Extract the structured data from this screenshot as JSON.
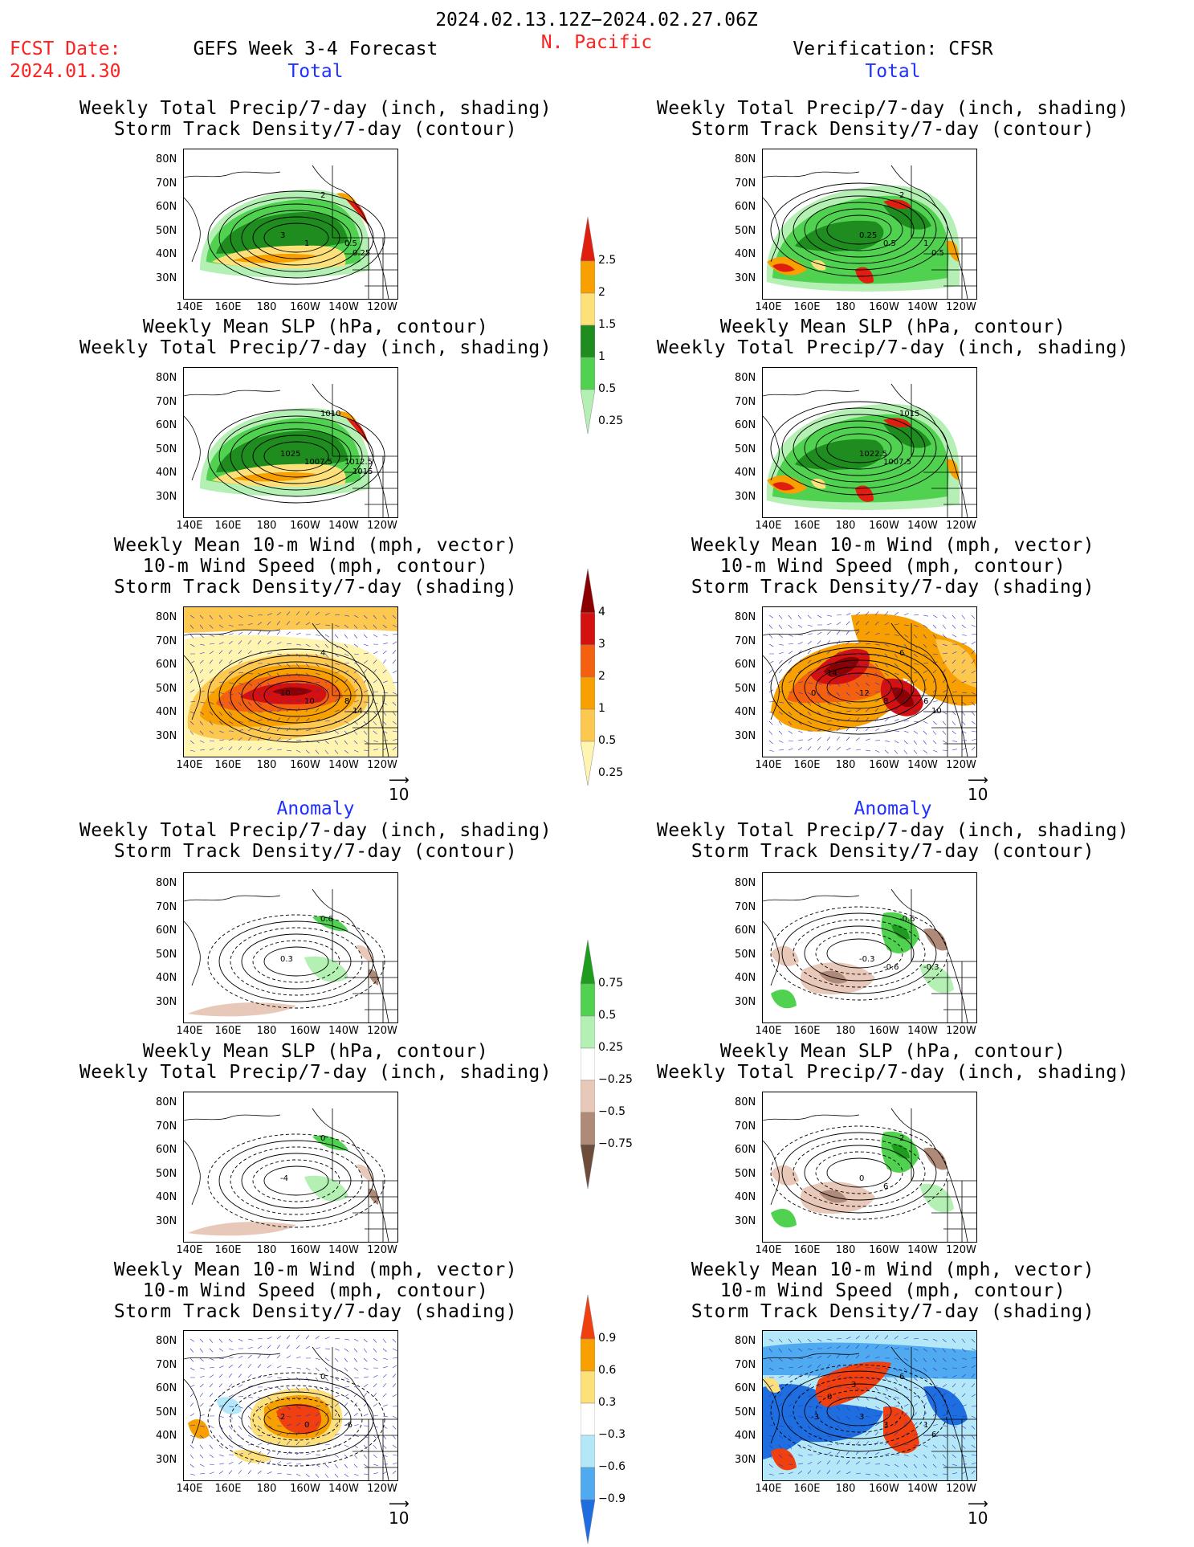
{
  "header": {
    "date_range": "2024.02.13.12Z−2024.02.27.06Z",
    "fcst_label": "FCST Date:",
    "fcst_date": "2024.01.30",
    "model_title": "GEFS Week 3-4 Forecast",
    "region": "N. Pacific",
    "verification": "Verification: CFSR"
  },
  "sections": {
    "total": "Total",
    "anomaly": "Anomaly"
  },
  "panel_titles": {
    "precip_storm": [
      "Weekly Total Precip/7-day (inch, shading)",
      "Storm Track Density/7-day (contour)"
    ],
    "slp_precip": [
      "Weekly Mean SLP (hPa, contour)",
      "Weekly Total Precip/7-day (inch, shading)"
    ],
    "wind_storm": [
      "Weekly Mean 10-m Wind (mph, vector)",
      "10-m Wind Speed (mph, contour)",
      "Storm Track Density/7-day (shading)"
    ]
  },
  "axes": {
    "lat_ticks": [
      "80N",
      "70N",
      "60N",
      "50N",
      "40N",
      "30N"
    ],
    "lon_ticks": [
      "140E",
      "160E",
      "180",
      "160W",
      "140W",
      "120W"
    ]
  },
  "vector_ref": "10",
  "colorbars": {
    "precip_total": {
      "labels": [
        "2.5",
        "2",
        "1.5",
        "1",
        "0.5",
        "0.25"
      ],
      "colors": [
        "#e01e10",
        "#f7a000",
        "#fde07a",
        "#1e8c1e",
        "#50d250",
        "#b4f0b4"
      ]
    },
    "storm_total": {
      "labels": [
        "4",
        "3",
        "2",
        "1",
        "0.5",
        "0.25"
      ],
      "colors": [
        "#8b0000",
        "#d41010",
        "#f26010",
        "#f7a000",
        "#fcc850",
        "#fff5b0"
      ]
    },
    "precip_anom": {
      "labels": [
        "0.75",
        "0.5",
        "0.25",
        "−0.25",
        "−0.5",
        "−0.75"
      ],
      "colors": [
        "#1e9c1e",
        "#50d250",
        "#b4f0b4",
        "#ffffff",
        "#e8c8b8",
        "#b08a78",
        "#6e4c3c"
      ]
    },
    "storm_anom": {
      "labels": [
        "0.9",
        "0.6",
        "0.3",
        "−0.3",
        "−0.6",
        "−0.9"
      ],
      "colors": [
        "#f04010",
        "#f7a000",
        "#fde07a",
        "#ffffff",
        "#b4e8f8",
        "#50aaf0",
        "#1e6ee0"
      ]
    }
  },
  "map_labels": {
    "t_fc_1": [
      "2",
      "3",
      "1",
      "0.5",
      "0.25"
    ],
    "t_vf_1": [
      "2",
      "0.25",
      "0.5",
      "1",
      "0.5"
    ],
    "t_fc_2": [
      "1010",
      "1025",
      "1007.5",
      "1012.5",
      "1015"
    ],
    "t_vf_2": [
      "1015",
      "1022.5",
      "1007.5"
    ],
    "t_fc_3": [
      "4",
      "10",
      "10",
      "8",
      "14"
    ],
    "t_vf_3": [
      "6",
      "12",
      "8",
      "6",
      "10",
      "14",
      "0"
    ],
    "a_fc_1": [
      "0.6",
      "0.3"
    ],
    "a_vf_1": [
      "-0.6",
      "-0.3",
      "-0.6",
      "-0.3"
    ],
    "a_fc_2": [
      "0",
      "-4"
    ],
    "a_vf_2": [
      "2",
      "0",
      "6"
    ],
    "a_fc_3": [
      "0",
      "2",
      "0",
      "-6"
    ],
    "a_vf_3": [
      "6",
      "3",
      "3",
      "1",
      "6",
      "0",
      "-3",
      "3"
    ]
  }
}
